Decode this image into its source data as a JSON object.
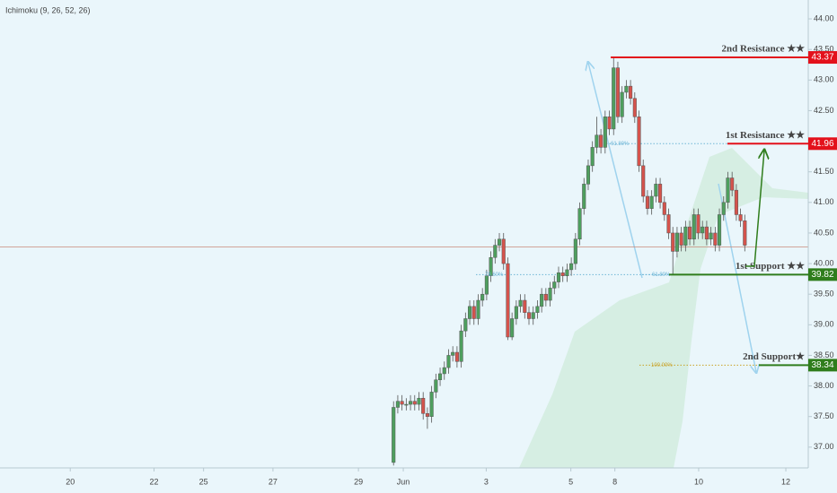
{
  "chart_data": {
    "type": "candlestick",
    "indicator": "Ichimoku (9, 26, 52, 26)",
    "up_color": "#4e9f5e",
    "down_color": "#d5534c",
    "xlim": [
      0,
      191
    ],
    "xticks": [
      {
        "value": 16.6,
        "label": "20"
      },
      {
        "value": 36.4,
        "label": "22"
      },
      {
        "value": 48.1,
        "label": "25"
      },
      {
        "value": 64.5,
        "label": "27"
      },
      {
        "value": 84.7,
        "label": "29"
      },
      {
        "value": 95.3,
        "label": "Jun"
      },
      {
        "value": 114.9,
        "label": "3"
      },
      {
        "value": 134.9,
        "label": "5"
      },
      {
        "value": 145.3,
        "label": "8"
      },
      {
        "value": 165.1,
        "label": "10"
      },
      {
        "value": 185.7,
        "label": "12"
      }
    ],
    "ylim": [
      36.69,
      44.2
    ],
    "yticks": [
      {
        "value": 44,
        "label": "44.00"
      },
      {
        "value": 43.5,
        "label": "43.50"
      },
      {
        "value": 43,
        "label": "43.00"
      },
      {
        "value": 42.5,
        "label": "42.50"
      },
      {
        "value": 41.5,
        "label": "41.50"
      },
      {
        "value": 41,
        "label": "41.00"
      },
      {
        "value": 40.5,
        "label": "40.50"
      },
      {
        "value": 40,
        "label": "40.00"
      },
      {
        "value": 39.5,
        "label": "39.50"
      },
      {
        "value": 39,
        "label": "39.00"
      },
      {
        "value": 38.5,
        "label": "38.50"
      },
      {
        "value": 38,
        "label": "38.00"
      },
      {
        "value": 37.5,
        "label": "37.50"
      },
      {
        "value": 37,
        "label": "37.00"
      }
    ],
    "price_line": 40.27,
    "x": [
      93,
      94,
      95,
      96,
      97,
      98,
      99,
      100,
      101,
      102,
      103,
      104,
      105,
      106,
      107,
      108,
      109,
      110,
      111,
      112,
      113,
      114,
      115,
      116,
      117,
      118,
      119,
      120,
      121,
      122,
      123,
      124,
      125,
      126,
      127,
      128,
      129,
      130,
      131,
      132,
      133,
      134,
      135,
      136,
      137,
      138,
      139,
      140,
      141,
      142,
      143,
      144,
      145,
      146,
      147,
      148,
      149,
      150,
      151,
      152,
      153,
      154,
      155,
      156,
      157,
      158,
      159,
      160,
      161,
      162,
      163,
      164,
      165,
      166,
      167,
      168,
      169,
      170,
      171,
      172,
      173,
      174,
      175,
      176
    ],
    "open": [
      36.75,
      37.65,
      37.75,
      37.7,
      37.7,
      37.75,
      37.7,
      37.8,
      37.55,
      37.5,
      37.9,
      38.1,
      38.2,
      38.3,
      38.5,
      38.55,
      38.4,
      38.9,
      39.1,
      39.3,
      39.1,
      39.4,
      39.5,
      39.8,
      40.1,
      40.3,
      40.4,
      40.0,
      38.8,
      39.1,
      39.3,
      39.4,
      39.2,
      39.1,
      39.2,
      39.3,
      39.5,
      39.4,
      39.6,
      39.7,
      39.85,
      39.8,
      39.9,
      40.0,
      40.4,
      40.9,
      41.3,
      41.6,
      41.9,
      42.1,
      41.9,
      42.4,
      42.2,
      43.2,
      42.4,
      42.8,
      42.9,
      42.7,
      42.4,
      41.6,
      41.1,
      40.9,
      41.1,
      41.3,
      41.0,
      40.8,
      40.5,
      40.2,
      40.5,
      40.3,
      40.6,
      40.4,
      40.8,
      40.5,
      40.6,
      40.4,
      40.5,
      40.3,
      40.8,
      41.0,
      41.4,
      41.2,
      40.8,
      40.7
    ],
    "high": [
      37.75,
      37.85,
      37.85,
      37.8,
      37.85,
      37.85,
      37.9,
      37.9,
      37.65,
      38.0,
      38.2,
      38.3,
      38.4,
      38.6,
      38.65,
      38.65,
      39.0,
      39.2,
      39.4,
      39.4,
      39.5,
      39.6,
      39.9,
      40.2,
      40.4,
      40.5,
      40.5,
      40.1,
      39.2,
      39.4,
      39.5,
      39.5,
      39.3,
      39.3,
      39.4,
      39.6,
      39.6,
      39.7,
      39.8,
      39.95,
      39.95,
      40.0,
      40.1,
      40.5,
      41.0,
      41.4,
      41.7,
      42.0,
      42.4,
      42.2,
      42.5,
      42.5,
      43.37,
      43.3,
      42.9,
      43.0,
      43.0,
      42.8,
      42.5,
      41.7,
      41.2,
      41.2,
      41.4,
      41.4,
      41.1,
      40.9,
      40.6,
      40.6,
      40.6,
      40.7,
      40.7,
      40.9,
      40.9,
      40.7,
      40.7,
      40.6,
      40.6,
      40.9,
      41.1,
      41.5,
      41.5,
      41.3,
      40.9,
      40.8
    ],
    "low": [
      36.7,
      37.55,
      37.6,
      37.6,
      37.6,
      37.6,
      37.6,
      37.45,
      37.3,
      37.4,
      37.8,
      38.0,
      38.1,
      38.2,
      38.4,
      38.3,
      38.3,
      38.8,
      39.0,
      39.0,
      39.0,
      39.3,
      39.4,
      39.7,
      40.0,
      40.2,
      39.9,
      38.75,
      38.75,
      39.0,
      39.2,
      39.1,
      39.0,
      39.0,
      39.1,
      39.2,
      39.3,
      39.3,
      39.5,
      39.6,
      39.7,
      39.7,
      39.8,
      39.9,
      40.3,
      40.8,
      41.2,
      41.5,
      41.8,
      41.8,
      41.8,
      42.1,
      42.1,
      42.3,
      42.3,
      42.7,
      42.6,
      42.3,
      41.5,
      41.0,
      40.8,
      40.8,
      41.0,
      40.9,
      40.7,
      40.4,
      39.82,
      40.1,
      40.2,
      40.2,
      40.3,
      40.3,
      40.4,
      40.4,
      40.3,
      40.3,
      40.2,
      40.2,
      40.7,
      40.9,
      41.1,
      40.7,
      40.6,
      40.2
    ],
    "close": [
      37.65,
      37.75,
      37.7,
      37.7,
      37.75,
      37.7,
      37.8,
      37.55,
      37.5,
      37.9,
      38.1,
      38.2,
      38.3,
      38.5,
      38.55,
      38.4,
      38.9,
      39.1,
      39.3,
      39.1,
      39.4,
      39.5,
      39.8,
      40.1,
      40.3,
      40.4,
      40.0,
      38.8,
      39.1,
      39.3,
      39.4,
      39.2,
      39.1,
      39.2,
      39.3,
      39.5,
      39.4,
      39.6,
      39.7,
      39.85,
      39.8,
      39.9,
      40.0,
      40.4,
      40.9,
      41.3,
      41.6,
      41.9,
      42.1,
      41.9,
      42.4,
      42.2,
      43.2,
      42.4,
      42.8,
      42.9,
      42.7,
      42.4,
      41.6,
      41.1,
      40.9,
      41.1,
      41.3,
      41.0,
      40.8,
      40.5,
      40.2,
      40.5,
      40.3,
      40.6,
      40.4,
      40.8,
      40.5,
      40.6,
      40.4,
      40.5,
      40.3,
      40.8,
      41.0,
      41.4,
      41.2,
      40.8,
      40.7,
      40.3
    ],
    "levels": [
      {
        "label": "2nd Resistance ★★",
        "value": 43.37,
        "color": "#e3111b"
      },
      {
        "label": "1st Resistance ★★",
        "value": 41.96,
        "color": "#e3111b"
      },
      {
        "label": "1st Support ★★",
        "value": 39.82,
        "color": "#2f7d1c"
      },
      {
        "label": "2nd Support★",
        "value": 38.34,
        "color": "#2f7d1c"
      }
    ],
    "fib_levels": [
      {
        "label": "61.80%",
        "value": 41.96
      },
      {
        "label": "78.60%",
        "value": 39.82
      },
      {
        "label": "61.80%",
        "value": 39.82
      },
      {
        "label": "100.00%",
        "value": 38.34
      }
    ]
  }
}
